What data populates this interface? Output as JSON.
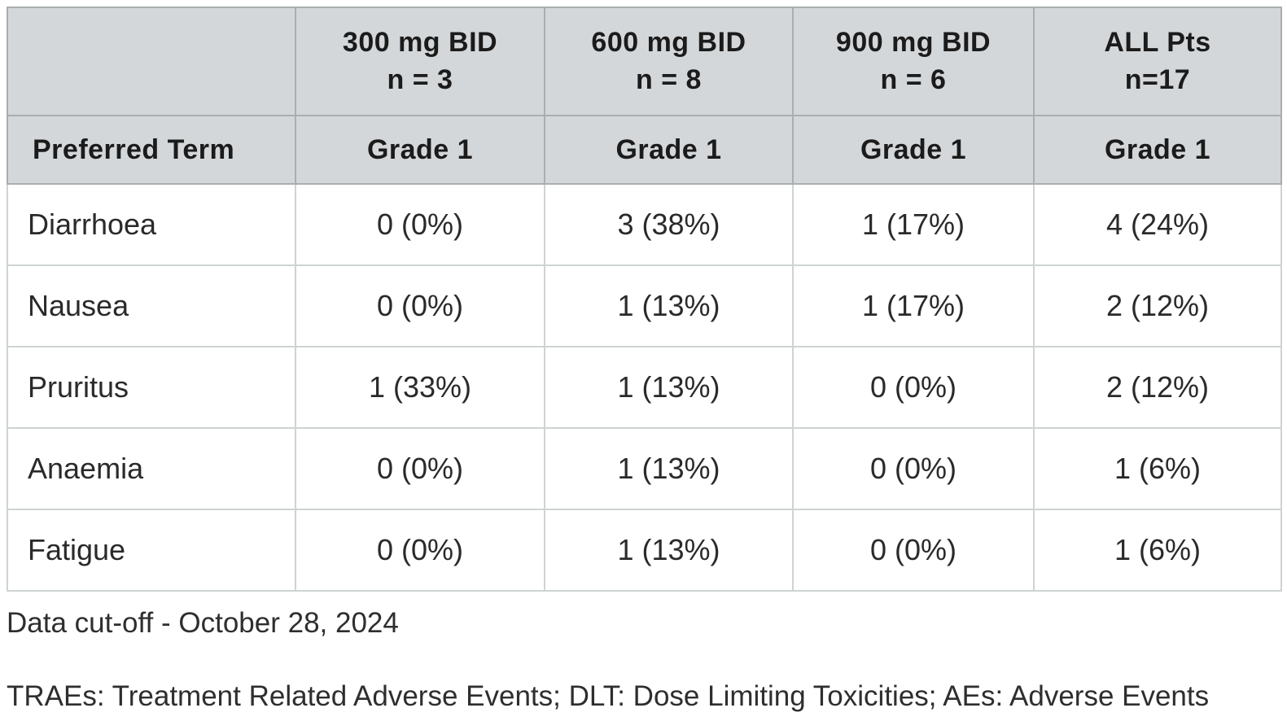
{
  "colors": {
    "header_bg": "#d4d7d9",
    "header_border": "#a9aeb1",
    "body_border": "#ced3d3",
    "outer_border": "#9aa0a3",
    "header_text": "#1b1b1b",
    "body_text": "#2a2a2a"
  },
  "table": {
    "corner_label": "",
    "dose_columns": [
      {
        "title": "300 mg BID",
        "n": "n = 3"
      },
      {
        "title": "600 mg BID",
        "n": "n = 8"
      },
      {
        "title": "900 mg BID",
        "n": "n = 6"
      },
      {
        "title": "ALL Pts",
        "n": "n=17"
      }
    ],
    "row_header": "Preferred Term",
    "grade_labels": [
      "Grade 1",
      "Grade 1",
      "Grade 1",
      "Grade 1"
    ],
    "rows": [
      {
        "term": "Diarrhoea",
        "values": [
          "0 (0%)",
          "3 (38%)",
          "1 (17%)",
          "4 (24%)"
        ]
      },
      {
        "term": "Nausea",
        "values": [
          "0 (0%)",
          "1 (13%)",
          "1 (17%)",
          "2 (12%)"
        ]
      },
      {
        "term": "Pruritus",
        "values": [
          "1 (33%)",
          "1 (13%)",
          "0 (0%)",
          "2 (12%)"
        ]
      },
      {
        "term": "Anaemia",
        "values": [
          "0 (0%)",
          "1 (13%)",
          "0 (0%)",
          "1 (6%)"
        ]
      },
      {
        "term": "Fatigue",
        "values": [
          "0 (0%)",
          "1 (13%)",
          "0 (0%)",
          "1 (6%)"
        ]
      }
    ]
  },
  "footnotes": {
    "data_cutoff": "Data cut-off - October 28, 2024",
    "abbreviations": "TRAEs: Treatment Related Adverse Events; DLT: Dose Limiting Toxicities; AEs: Adverse Events"
  },
  "chart_data": {
    "type": "table",
    "columns": [
      "Preferred Term",
      "300 mg BID n = 3 — Grade 1",
      "600 mg BID n = 8 — Grade 1",
      "900 mg BID n = 6 — Grade 1",
      "ALL Pts n=17 — Grade 1"
    ],
    "rows": [
      [
        "Diarrhoea",
        "0 (0%)",
        "3 (38%)",
        "1 (17%)",
        "4 (24%)"
      ],
      [
        "Nausea",
        "0 (0%)",
        "1 (13%)",
        "1 (17%)",
        "2 (12%)"
      ],
      [
        "Pruritus",
        "1 (33%)",
        "1 (13%)",
        "0 (0%)",
        "2 (12%)"
      ],
      [
        "Anaemia",
        "0 (0%)",
        "1 (13%)",
        "0 (0%)",
        "1 (6%)"
      ],
      [
        "Fatigue",
        "0 (0%)",
        "1 (13%)",
        "0 (0%)",
        "1 (6%)"
      ]
    ]
  }
}
